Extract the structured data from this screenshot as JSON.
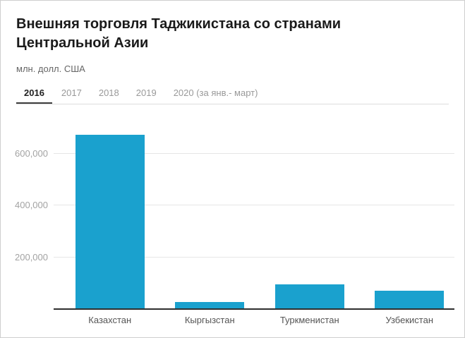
{
  "header": {
    "title": "Внешняя торговля Таджикистана со странами Центральной Азии",
    "unit": "млн. долл. США"
  },
  "tabs": [
    {
      "label": "2016",
      "slug": "2016",
      "active": true
    },
    {
      "label": "2017",
      "slug": "2017",
      "active": false
    },
    {
      "label": "2018",
      "slug": "2018",
      "active": false
    },
    {
      "label": "2019",
      "slug": "2019",
      "active": false
    },
    {
      "label": "2020 (за янв.- март)",
      "slug": "2020-jan-mar",
      "active": false
    }
  ],
  "chart_data": {
    "type": "bar",
    "title": "Внешняя торговля Таджикистана со странами Центральной Азии",
    "subtitle": "млн. долл. США",
    "selected_tab": "2016",
    "categories": [
      "Казахстан",
      "Кыргызстан",
      "Туркменистан",
      "Узбекистан"
    ],
    "category_slugs": [
      "kazakhstan",
      "kyrgyzstan",
      "turkmenistan",
      "uzbekistan"
    ],
    "values": [
      675000,
      28000,
      95000,
      70000
    ],
    "yticks": [
      {
        "value": 200000,
        "label": "200,000"
      },
      {
        "value": 400000,
        "label": "400,000"
      },
      {
        "value": 600000,
        "label": "600,000"
      }
    ],
    "ylim": [
      0,
      750000
    ],
    "xlabel": "",
    "ylabel": "",
    "grid": "horizontal",
    "legend": "none",
    "bar_color": "#1AA1CE"
  }
}
